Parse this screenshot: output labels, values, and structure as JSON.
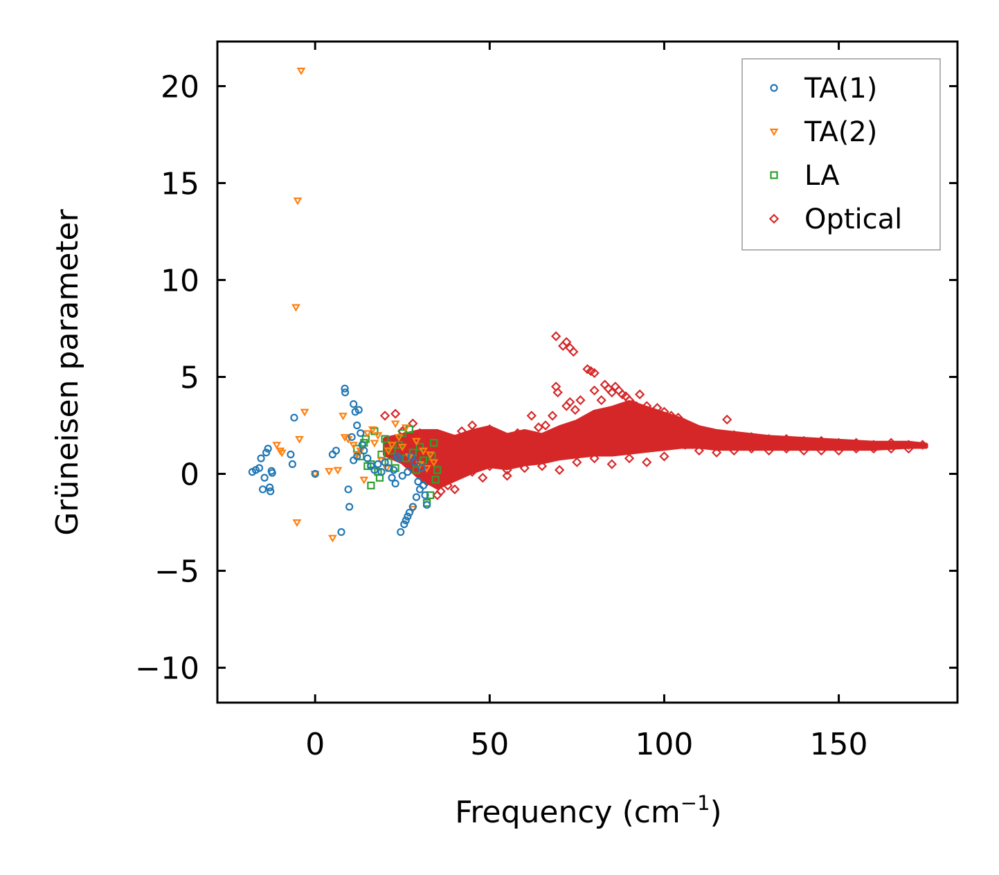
{
  "chart_data": {
    "type": "scatter",
    "title": "",
    "xlabel": "Frequency (cm",
    "xlabel_sup": "−1",
    "xlabel_suffix": ")",
    "ylabel": "Grüneisen parameter",
    "xlim": [
      -28,
      184
    ],
    "ylim": [
      -11.8,
      22.3
    ],
    "xticks": [
      0,
      50,
      100,
      150
    ],
    "xtick_labels": [
      "0",
      "50",
      "100",
      "150"
    ],
    "yticks": [
      -10,
      -5,
      0,
      5,
      10,
      15,
      20
    ],
    "ytick_labels": [
      "−10",
      "−5",
      "0",
      "5",
      "10",
      "15",
      "20"
    ],
    "legend_position": "top-right",
    "grid": false,
    "series": [
      {
        "name": "TA(1)",
        "marker": "circle",
        "color": "#1f77b4",
        "points": [
          [
            -18,
            0.1
          ],
          [
            -17,
            0.2
          ],
          [
            -16,
            0.3
          ],
          [
            -15.5,
            0.8
          ],
          [
            -15,
            -0.8
          ],
          [
            -14.5,
            -0.2
          ],
          [
            -14,
            1.1
          ],
          [
            -13.5,
            1.3
          ],
          [
            -13,
            -0.7
          ],
          [
            -12.8,
            -0.9
          ],
          [
            -12.5,
            0.15
          ],
          [
            -12.3,
            0.05
          ],
          [
            -7,
            1.0
          ],
          [
            -6.5,
            0.5
          ],
          [
            -6,
            2.9
          ],
          [
            0,
            0
          ],
          [
            5,
            1.0
          ],
          [
            6,
            1.2
          ],
          [
            7.5,
            -3.0
          ],
          [
            8.5,
            4.4
          ],
          [
            8.6,
            4.2
          ],
          [
            9.5,
            -0.8
          ],
          [
            9.8,
            -1.7
          ],
          [
            10.5,
            1.9
          ],
          [
            11,
            3.6
          ],
          [
            11.5,
            3.2
          ],
          [
            12,
            2.5
          ],
          [
            12.5,
            3.3
          ],
          [
            13,
            2.1
          ],
          [
            13.5,
            1.5
          ],
          [
            11,
            0.7
          ],
          [
            12,
            0.9
          ],
          [
            14,
            1.2
          ],
          [
            15,
            0.8
          ],
          [
            16,
            0.4
          ],
          [
            17,
            0.2
          ],
          [
            18,
            0.5
          ],
          [
            19,
            0.1
          ],
          [
            20,
            0.6
          ],
          [
            21,
            0.3
          ],
          [
            22,
            -0.2
          ],
          [
            23,
            -0.5
          ],
          [
            24,
            0.8
          ],
          [
            25,
            -0.1
          ],
          [
            22.5,
            0.2
          ],
          [
            23.5,
            0.9
          ],
          [
            24.5,
            -3.0
          ],
          [
            25.5,
            -2.6
          ],
          [
            26,
            -2.4
          ],
          [
            26.5,
            -2.2
          ],
          [
            27,
            -2.0
          ],
          [
            28,
            -1.7
          ],
          [
            29,
            -1.2
          ],
          [
            30,
            -0.8
          ],
          [
            31,
            -0.6
          ],
          [
            32,
            -1.6
          ],
          [
            30.5,
            0.3
          ],
          [
            29.5,
            -0.4
          ],
          [
            28.5,
            0.6
          ],
          [
            27.5,
            0.9
          ],
          [
            26.5,
            0.1
          ],
          [
            31.5,
            -1.1
          ]
        ]
      },
      {
        "name": "TA(2)",
        "marker": "triangle-down",
        "color": "#ff7f0e",
        "points": [
          [
            -4,
            20.8
          ],
          [
            -5,
            14.1
          ],
          [
            -5.5,
            8.6
          ],
          [
            -5.2,
            -2.5
          ],
          [
            -3,
            3.2
          ],
          [
            -4.5,
            1.8
          ],
          [
            -11,
            1.5
          ],
          [
            -10,
            1.2
          ],
          [
            -9.5,
            1.1
          ],
          [
            0,
            0
          ],
          [
            4,
            0.15
          ],
          [
            5,
            -3.3
          ],
          [
            6.5,
            0.2
          ],
          [
            8,
            3.0
          ],
          [
            8.5,
            1.9
          ],
          [
            9.5,
            1.8
          ],
          [
            11,
            1.5
          ],
          [
            12,
            1.0
          ],
          [
            14,
            -0.3
          ],
          [
            15,
            2.1
          ],
          [
            16.5,
            2.3
          ],
          [
            17,
            1.6
          ],
          [
            18,
            2.0
          ],
          [
            19,
            0.7
          ],
          [
            21,
            1.2
          ],
          [
            23,
            2.6
          ],
          [
            24,
            1.9
          ],
          [
            25,
            1.4
          ],
          [
            26,
            2.4
          ],
          [
            27,
            0.9
          ],
          [
            28,
            -1.8
          ],
          [
            29,
            1.7
          ],
          [
            30,
            0.5
          ],
          [
            31,
            1.2
          ],
          [
            32,
            0.3
          ],
          [
            33,
            1.0
          ],
          [
            34,
            0.6
          ],
          [
            13,
            1.2
          ],
          [
            20.5,
            0.3
          ],
          [
            22,
            1.5
          ]
        ]
      },
      {
        "name": "LA",
        "marker": "square",
        "color": "#2ca02c",
        "points": [
          [
            12,
            1.3
          ],
          [
            13,
            0.9
          ],
          [
            14,
            1.6
          ],
          [
            15,
            0.4
          ],
          [
            16,
            -0.6
          ],
          [
            17,
            2.2
          ],
          [
            18,
            0.1
          ],
          [
            19,
            1.0
          ],
          [
            20,
            1.8
          ],
          [
            21,
            0.6
          ],
          [
            22,
            1.2
          ],
          [
            23,
            0.3
          ],
          [
            24,
            1.5
          ],
          [
            25,
            2.1
          ],
          [
            26,
            0.8
          ],
          [
            27,
            2.3
          ],
          [
            28,
            1.1
          ],
          [
            29,
            0.2
          ],
          [
            30,
            1.4
          ],
          [
            31,
            0.7
          ],
          [
            32,
            -1.5
          ],
          [
            33,
            -1.1
          ],
          [
            34,
            1.6
          ],
          [
            35,
            0.2
          ],
          [
            34.5,
            -0.3
          ],
          [
            33.5,
            0.9
          ],
          [
            14.5,
            1.8
          ],
          [
            16,
            0.5
          ],
          [
            18.5,
            -0.2
          ],
          [
            20.5,
            1.5
          ]
        ]
      },
      {
        "name": "Optical",
        "marker": "diamond",
        "color": "#d62728",
        "points": [
          [
            20,
            3.0
          ],
          [
            23,
            3.1
          ],
          [
            25,
            2.2
          ],
          [
            28,
            2.6
          ],
          [
            30,
            2.1
          ],
          [
            32,
            -0.4
          ],
          [
            35,
            -1.1
          ],
          [
            38,
            -0.6
          ],
          [
            40,
            -0.1
          ],
          [
            42,
            2.2
          ],
          [
            45,
            2.5
          ],
          [
            48,
            -0.2
          ],
          [
            50,
            2.3
          ],
          [
            52,
            2.0
          ],
          [
            55,
            0.2
          ],
          [
            58,
            2.1
          ],
          [
            60,
            1.4
          ],
          [
            62,
            3.0
          ],
          [
            64,
            2.4
          ],
          [
            66,
            2.5
          ],
          [
            68,
            3.0
          ],
          [
            69,
            7.1
          ],
          [
            69,
            4.5
          ],
          [
            69.5,
            4.2
          ],
          [
            71,
            6.6
          ],
          [
            72,
            6.8
          ],
          [
            73,
            6.5
          ],
          [
            74,
            6.3
          ],
          [
            72,
            3.5
          ],
          [
            73,
            3.7
          ],
          [
            74.5,
            3.3
          ],
          [
            76,
            3.8
          ],
          [
            78,
            5.4
          ],
          [
            79,
            5.3
          ],
          [
            80,
            5.2
          ],
          [
            80,
            4.3
          ],
          [
            82,
            3.8
          ],
          [
            83,
            4.6
          ],
          [
            84,
            4.4
          ],
          [
            85,
            4.2
          ],
          [
            86,
            4.5
          ],
          [
            87,
            4.3
          ],
          [
            88,
            4.1
          ],
          [
            89,
            4.0
          ],
          [
            90,
            3.8
          ],
          [
            91,
            3.6
          ],
          [
            92,
            3.5
          ],
          [
            93,
            4.1
          ],
          [
            94,
            3.3
          ],
          [
            95,
            3.5
          ],
          [
            96,
            3.1
          ],
          [
            98,
            3.4
          ],
          [
            100,
            3.2
          ],
          [
            102,
            3.0
          ],
          [
            104,
            2.9
          ],
          [
            106,
            2.6
          ],
          [
            108,
            2.4
          ],
          [
            110,
            2.2
          ],
          [
            112,
            2.0
          ],
          [
            115,
            2.0
          ],
          [
            118,
            2.8
          ],
          [
            120,
            2.0
          ],
          [
            125,
            1.9
          ],
          [
            130,
            1.8
          ],
          [
            135,
            1.8
          ],
          [
            140,
            1.7
          ],
          [
            145,
            1.7
          ],
          [
            150,
            1.6
          ],
          [
            155,
            1.6
          ],
          [
            160,
            1.5
          ],
          [
            165,
            1.6
          ],
          [
            170,
            1.5
          ],
          [
            174,
            1.5
          ],
          [
            106,
            1.5
          ],
          [
            100,
            0.9
          ],
          [
            95,
            0.6
          ],
          [
            90,
            0.8
          ],
          [
            85,
            0.5
          ],
          [
            80,
            0.8
          ],
          [
            75,
            0.6
          ],
          [
            70,
            0.2
          ],
          [
            65,
            0.4
          ],
          [
            60,
            0.3
          ],
          [
            55,
            -0.1
          ],
          [
            50,
            0.4
          ],
          [
            45,
            0.1
          ],
          [
            40,
            -0.8
          ],
          [
            36,
            -0.9
          ],
          [
            120,
            1.2
          ],
          [
            130,
            1.2
          ],
          [
            140,
            1.2
          ],
          [
            150,
            1.2
          ],
          [
            160,
            1.3
          ],
          [
            170,
            1.3
          ],
          [
            110,
            1.2
          ],
          [
            115,
            1.1
          ],
          [
            125,
            1.3
          ],
          [
            135,
            1.3
          ],
          [
            145,
            1.2
          ],
          [
            155,
            1.3
          ],
          [
            165,
            1.3
          ],
          [
            96,
            2.0
          ],
          [
            92,
            2.5
          ],
          [
            88,
            2.6
          ],
          [
            84,
            2.8
          ],
          [
            78,
            2.2
          ],
          [
            66,
            1.0
          ],
          [
            58,
            1.2
          ],
          [
            46,
            1.0
          ],
          [
            38,
            1.0
          ],
          [
            35,
            0.6
          ]
        ],
        "envelope_upper": [
          [
            20,
            1.8
          ],
          [
            25,
            2.0
          ],
          [
            30,
            2.2
          ],
          [
            35,
            2.2
          ],
          [
            40,
            1.9
          ],
          [
            45,
            2.2
          ],
          [
            50,
            2.4
          ],
          [
            55,
            2.0
          ],
          [
            60,
            2.2
          ],
          [
            65,
            2.0
          ],
          [
            70,
            2.4
          ],
          [
            75,
            2.7
          ],
          [
            80,
            3.2
          ],
          [
            85,
            3.4
          ],
          [
            90,
            3.7
          ],
          [
            95,
            3.4
          ],
          [
            100,
            3.1
          ],
          [
            105,
            2.8
          ],
          [
            110,
            2.4
          ],
          [
            115,
            2.2
          ],
          [
            120,
            2.1
          ],
          [
            130,
            1.9
          ],
          [
            140,
            1.8
          ],
          [
            150,
            1.7
          ],
          [
            160,
            1.6
          ],
          [
            170,
            1.6
          ],
          [
            175,
            1.5
          ]
        ],
        "envelope_lower": [
          [
            20,
            1.0
          ],
          [
            25,
            0.6
          ],
          [
            30,
            -0.2
          ],
          [
            35,
            -0.7
          ],
          [
            40,
            -0.3
          ],
          [
            45,
            0.1
          ],
          [
            50,
            0.4
          ],
          [
            55,
            0.3
          ],
          [
            60,
            0.5
          ],
          [
            65,
            0.6
          ],
          [
            70,
            0.8
          ],
          [
            75,
            0.9
          ],
          [
            80,
            1.0
          ],
          [
            85,
            1.0
          ],
          [
            90,
            1.1
          ],
          [
            95,
            1.2
          ],
          [
            100,
            1.3
          ],
          [
            105,
            1.4
          ],
          [
            110,
            1.4
          ],
          [
            115,
            1.3
          ],
          [
            120,
            1.3
          ],
          [
            130,
            1.3
          ],
          [
            140,
            1.3
          ],
          [
            150,
            1.3
          ],
          [
            160,
            1.3
          ],
          [
            170,
            1.4
          ],
          [
            175,
            1.4
          ]
        ]
      }
    ]
  }
}
